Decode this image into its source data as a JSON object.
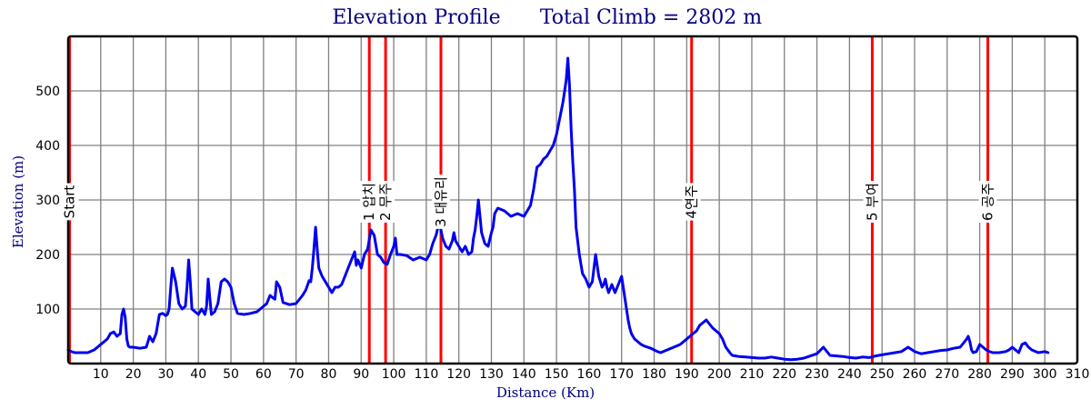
{
  "chart_data": {
    "type": "line",
    "title": "Elevation Profile",
    "subtitle": "Total Climb = 2802 m",
    "xlabel": "Distance (Km)",
    "ylabel": "Elevation (m)",
    "xlim": [
      0,
      310
    ],
    "ylim": [
      0,
      600
    ],
    "grid": true,
    "x_ticks": [
      10,
      20,
      30,
      40,
      50,
      60,
      70,
      80,
      90,
      100,
      110,
      120,
      130,
      140,
      150,
      160,
      170,
      180,
      190,
      200,
      210,
      220,
      230,
      240,
      250,
      260,
      270,
      280,
      290,
      300,
      310
    ],
    "x_tick_labels": [
      "10",
      "20",
      "30",
      "40",
      "50",
      "60",
      "70",
      "80",
      "90",
      "100",
      "110",
      "120",
      "130",
      "140",
      "150",
      "160",
      "170",
      "180",
      "190",
      "200",
      "210",
      "220",
      "230",
      "240",
      "250",
      "260",
      "270",
      "280",
      "290",
      "300",
      "310"
    ],
    "y_ticks": [
      100,
      200,
      300,
      400,
      500
    ],
    "y_tick_labels": [
      "100",
      "200",
      "300",
      "400",
      "500"
    ],
    "markers": [
      {
        "x": 0,
        "label": "Start"
      },
      {
        "x": 92.5,
        "label": "1 압치"
      },
      {
        "x": 97.5,
        "label": "2 무주"
      },
      {
        "x": 114.5,
        "label": "3 대유리"
      },
      {
        "x": 191.5,
        "label": "4연주"
      },
      {
        "x": 247,
        "label": "5 부여"
      },
      {
        "x": 282.5,
        "label": "6 공주"
      }
    ],
    "series": [
      {
        "color": "#0000ee",
        "x": [
          0,
          1,
          2,
          4,
          6,
          8,
          10,
          12,
          13,
          14,
          15,
          16,
          16.5,
          17,
          17.5,
          18,
          18.5,
          19,
          20,
          22,
          24,
          25,
          26,
          27,
          28,
          29,
          30,
          30.5,
          31,
          31.5,
          32,
          33,
          34,
          35,
          36,
          36.5,
          37,
          37.5,
          38,
          39,
          40,
          41,
          42,
          42.5,
          43,
          43.5,
          44,
          45,
          46,
          47,
          48,
          49,
          50,
          51,
          52,
          54,
          56,
          58,
          60,
          61,
          62,
          63,
          63.5,
          64,
          65,
          66,
          68,
          70,
          72,
          73,
          74,
          74.5,
          75,
          75.5,
          76,
          76.5,
          77,
          78,
          79,
          80,
          81,
          82,
          83,
          84,
          85,
          86,
          87,
          88,
          88.5,
          89,
          90,
          91,
          92,
          93,
          94,
          95,
          96,
          97,
          98,
          99,
          100,
          100.5,
          101,
          102,
          104,
          106,
          108,
          110,
          111,
          112,
          113,
          114,
          115,
          116,
          117,
          118,
          118.5,
          119,
          120,
          121,
          122,
          123,
          124,
          124.5,
          125,
          125.5,
          126,
          127,
          128,
          129,
          130,
          130.5,
          131,
          132,
          134,
          136,
          138,
          140,
          141,
          142,
          143,
          144,
          145,
          146,
          147,
          148,
          149,
          150,
          151,
          152,
          153,
          153.5,
          154,
          154.5,
          155,
          155.5,
          156,
          157,
          158,
          159,
          160,
          161,
          162,
          163,
          164,
          164.5,
          165,
          165.5,
          166,
          167,
          168,
          169,
          170,
          171,
          172,
          172.5,
          173,
          173.5,
          174,
          175,
          176,
          177,
          178,
          179,
          180,
          181,
          182,
          184,
          186,
          188,
          190,
          191,
          192,
          193,
          194,
          196,
          198,
          200,
          201,
          202,
          203,
          203.5,
          204,
          205,
          206,
          208,
          210,
          212,
          214,
          216,
          218,
          220,
          222,
          224,
          225,
          226,
          227,
          228,
          230,
          232,
          234,
          236,
          238,
          239,
          240,
          242,
          244,
          246,
          247,
          248,
          250,
          252,
          254,
          256,
          258,
          260,
          261,
          262,
          264,
          266,
          268,
          270,
          272,
          274,
          276,
          276.5,
          277,
          277.5,
          278,
          279,
          280,
          281,
          282,
          283,
          284,
          286,
          288,
          289,
          290,
          292,
          293,
          294,
          295,
          296,
          298,
          300,
          301
        ],
        "y": [
          25,
          22,
          20,
          20,
          20,
          25,
          35,
          45,
          55,
          58,
          50,
          55,
          90,
          100,
          85,
          45,
          32,
          30,
          30,
          28,
          30,
          50,
          40,
          55,
          90,
          92,
          88,
          90,
          100,
          140,
          175,
          150,
          110,
          100,
          105,
          140,
          190,
          150,
          100,
          95,
          90,
          100,
          90,
          105,
          155,
          120,
          90,
          95,
          110,
          150,
          155,
          150,
          140,
          110,
          92,
          90,
          92,
          95,
          105,
          110,
          125,
          120,
          118,
          150,
          140,
          112,
          108,
          110,
          125,
          135,
          152,
          150,
          175,
          210,
          250,
          210,
          175,
          160,
          150,
          140,
          130,
          140,
          140,
          145,
          160,
          175,
          190,
          205,
          180,
          190,
          175,
          200,
          210,
          245,
          235,
          200,
          195,
          185,
          182,
          200,
          215,
          230,
          200,
          200,
          198,
          190,
          195,
          190,
          200,
          220,
          235,
          260,
          230,
          215,
          210,
          225,
          240,
          225,
          215,
          205,
          215,
          200,
          205,
          230,
          245,
          270,
          300,
          240,
          220,
          215,
          240,
          250,
          275,
          285,
          280,
          270,
          275,
          270,
          280,
          290,
          320,
          360,
          365,
          375,
          380,
          390,
          400,
          420,
          450,
          480,
          520,
          560,
          510,
          430,
          370,
          320,
          250,
          200,
          165,
          155,
          140,
          150,
          200,
          160,
          140,
          145,
          155,
          140,
          130,
          145,
          130,
          145,
          160,
          120,
          80,
          65,
          55,
          50,
          45,
          40,
          35,
          32,
          30,
          28,
          25,
          22,
          20,
          25,
          30,
          35,
          45,
          50,
          55,
          60,
          70,
          80,
          65,
          55,
          45,
          30,
          22,
          18,
          15,
          14,
          13,
          12,
          11,
          10,
          10,
          12,
          10,
          8,
          7,
          8,
          9,
          10,
          12,
          14,
          18,
          30,
          15,
          14,
          13,
          12,
          11,
          10,
          12,
          11,
          12,
          14,
          16,
          18,
          20,
          22,
          30,
          22,
          20,
          18,
          20,
          22,
          24,
          25,
          28,
          30,
          45,
          50,
          40,
          25,
          20,
          22,
          35,
          30,
          25,
          22,
          20,
          20,
          22,
          25,
          30,
          20,
          35,
          38,
          30,
          25,
          20,
          22,
          20
        ]
      }
    ]
  }
}
